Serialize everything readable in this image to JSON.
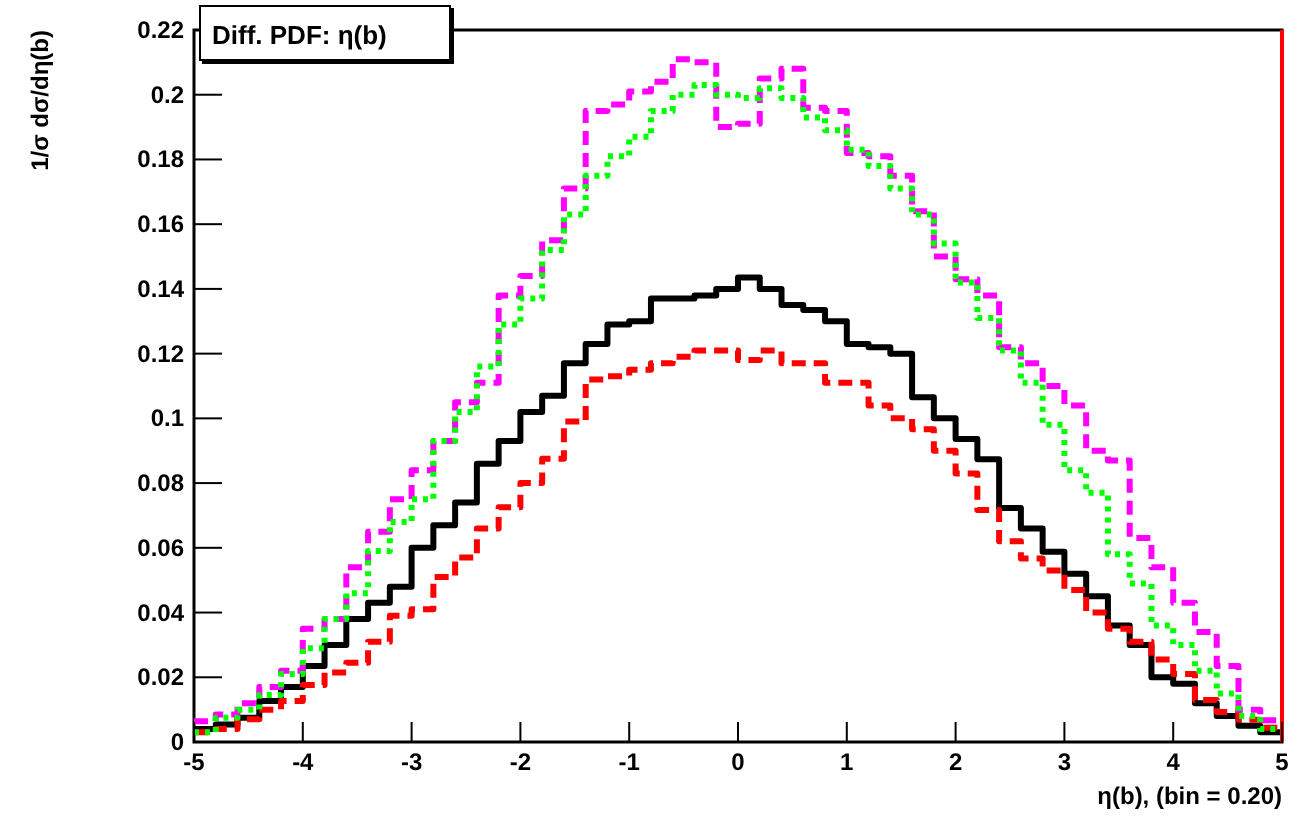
{
  "chart_data": {
    "type": "histogram",
    "title": "Diff. PDF: η(b)",
    "xlabel": "η(b),  (bin =  0.20)",
    "ylabel": "1/σ dσ/dη(b)",
    "bins": [
      -5,
      -4.8,
      -4.6,
      -4.4,
      -4.2,
      -4,
      -3.8,
      -3.6,
      -3.4,
      -3.2,
      -3,
      -2.8,
      -2.6,
      -2.4,
      -2.2,
      -2,
      -1.8,
      -1.6,
      -1.4,
      -1.2,
      -1,
      -0.8,
      -0.6,
      -0.4,
      -0.2,
      0,
      0.2,
      0.4,
      0.6,
      0.8,
      1,
      1.2,
      1.4,
      1.6,
      1.8,
      2,
      2.2,
      2.4,
      2.6,
      2.8,
      3,
      3.2,
      3.4,
      3.6,
      3.8,
      4,
      4.2,
      4.4,
      4.6,
      4.8,
      5
    ],
    "series": [
      {
        "color": "#000000",
        "line_style": "solid",
        "values": [
          0.004,
          0.0054,
          0.0075,
          0.0127,
          0.017,
          0.0235,
          0.03,
          0.038,
          0.043,
          0.048,
          0.06,
          0.067,
          0.074,
          0.086,
          0.093,
          0.102,
          0.107,
          0.117,
          0.123,
          0.129,
          0.13,
          0.137,
          0.137,
          0.138,
          0.14,
          0.1435,
          0.14,
          0.135,
          0.1335,
          0.13,
          0.123,
          0.122,
          0.12,
          0.1065,
          0.1,
          0.0936,
          0.0874,
          0.0723,
          0.066,
          0.0588,
          0.052,
          0.045,
          0.036,
          0.03,
          0.02,
          0.018,
          0.012,
          0.008,
          0.005,
          0.003
        ]
      },
      {
        "color": "#ff0000",
        "line_style": "dashed",
        "values": [
          0.003,
          0.004,
          0.007,
          0.01,
          0.0127,
          0.0176,
          0.0215,
          0.0245,
          0.031,
          0.039,
          0.041,
          0.051,
          0.057,
          0.066,
          0.0725,
          0.08,
          0.0875,
          0.099,
          0.112,
          0.113,
          0.115,
          0.117,
          0.119,
          0.121,
          0.121,
          0.118,
          0.121,
          0.117,
          0.117,
          0.111,
          0.111,
          0.104,
          0.1,
          0.0966,
          0.09,
          0.083,
          0.0717,
          0.062,
          0.0567,
          0.053,
          0.047,
          0.04,
          0.035,
          0.031,
          0.0255,
          0.021,
          0.013,
          0.0093,
          0.0069,
          0.0044
        ]
      },
      {
        "color": "#ff00ff",
        "line_style": "dashed",
        "values": [
          0.0064,
          0.0085,
          0.012,
          0.017,
          0.022,
          0.035,
          0.038,
          0.054,
          0.065,
          0.075,
          0.084,
          0.093,
          0.105,
          0.111,
          0.138,
          0.144,
          0.155,
          0.171,
          0.195,
          0.197,
          0.201,
          0.204,
          0.211,
          0.21,
          0.19,
          0.191,
          0.205,
          0.208,
          0.196,
          0.195,
          0.182,
          0.181,
          0.175,
          0.164,
          0.15,
          0.143,
          0.138,
          0.122,
          0.117,
          0.11,
          0.104,
          0.09,
          0.087,
          0.063,
          0.054,
          0.043,
          0.034,
          0.0235,
          0.01,
          0.0067
        ]
      },
      {
        "color": "#00ff00",
        "line_style": "dotted",
        "values": [
          0.003,
          0.0075,
          0.01,
          0.0145,
          0.021,
          0.029,
          0.038,
          0.046,
          0.059,
          0.068,
          0.075,
          0.093,
          0.102,
          0.116,
          0.129,
          0.137,
          0.152,
          0.163,
          0.175,
          0.181,
          0.187,
          0.195,
          0.2,
          0.203,
          0.2,
          0.199,
          0.202,
          0.199,
          0.193,
          0.189,
          0.183,
          0.178,
          0.171,
          0.163,
          0.154,
          0.142,
          0.131,
          0.121,
          0.111,
          0.098,
          0.084,
          0.077,
          0.058,
          0.049,
          0.036,
          0.03,
          0.022,
          0.015,
          0.008,
          0.004
        ]
      }
    ],
    "xlim": [
      -5,
      5
    ],
    "ylim": [
      0,
      0.22
    ],
    "xticks": [
      -5,
      -4,
      -3,
      -2,
      -1,
      0,
      1,
      2,
      3,
      4,
      5
    ],
    "yticks": [
      0,
      0.02,
      0.04,
      0.06,
      0.08,
      0.1,
      0.12,
      0.14,
      0.16,
      0.18,
      0.2,
      0.22
    ],
    "ref_lines": [
      {
        "axis": "x",
        "value": 5,
        "color": "#ff0000"
      }
    ]
  }
}
